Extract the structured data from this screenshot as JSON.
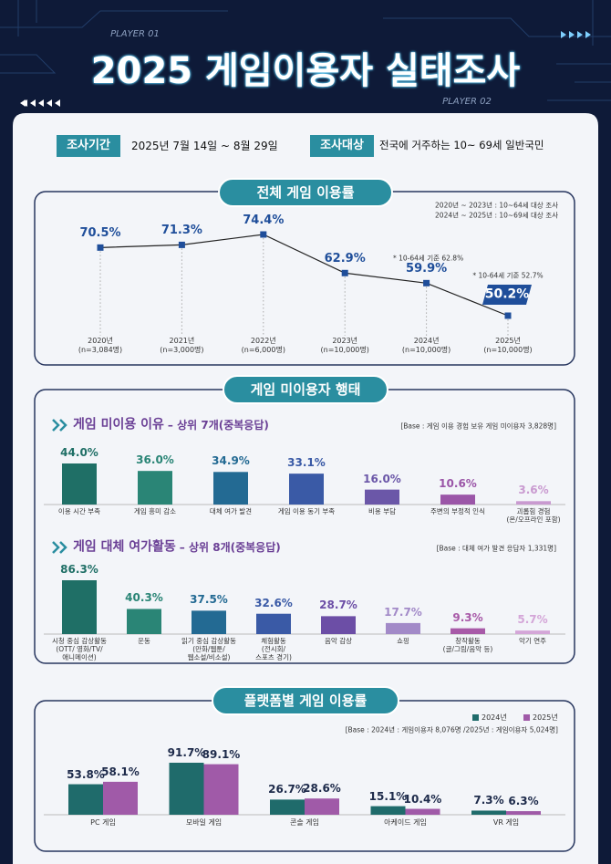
{
  "header": {
    "player1": "PLAYER 01",
    "title": "2025 게임이용자 실태조사",
    "player2": "PLAYER 02"
  },
  "survey": {
    "period_label": "조사기간",
    "period": "2025년 7월 14일 ~ 8월 29일",
    "target_label": "조사대상",
    "target": "전국에 거주하는 10~ 69세 일반국민"
  },
  "section_title": "게임 미이용자 행태",
  "chart_data": [
    {
      "type": "line",
      "title": "전체 게임 이용률",
      "notes": [
        "2020년 ~ 2023년 : 10~64세 대상 조사",
        "2024년 ~ 2025년 : 10~69세 대상 조사"
      ],
      "categories": [
        "2020년",
        "2021년",
        "2022년",
        "2023년",
        "2024년",
        "2025년"
      ],
      "sample_sizes": [
        "(n=3,084명)",
        "(n=3,000명)",
        "(n=6,000명)",
        "(n=10,000명)",
        "(n=10,000명)",
        "(n=10,000명)"
      ],
      "values": [
        70.5,
        71.3,
        74.4,
        62.9,
        59.9,
        50.2
      ],
      "value_labels": [
        "70.5%",
        "71.3%",
        "74.4%",
        "62.9%",
        "59.9%",
        "50.2%"
      ],
      "annotations": [
        "* 10-64세 기준 62.8%",
        "* 10-64세 기준 52.7%"
      ],
      "color": "#1f4e9a"
    },
    {
      "type": "bar",
      "title": "게임 미이용 이유",
      "subtitle": "– 상위 7개(중복응답)",
      "base": "[Base : 게임 이용 경험 보유 게임 미이용자 3,828명]",
      "categories": [
        "이용 시간 부족",
        "게임 흥미 감소",
        "대체 여가 발견",
        "게임 이용 동기 부족",
        "비용 부담",
        "주변의 부정적 인식",
        "괴롭힘 경험\n(온/오프라인 포함)"
      ],
      "values": [
        44.0,
        36.0,
        34.9,
        33.1,
        16.0,
        10.6,
        3.6
      ],
      "value_labels": [
        "44.0%",
        "36.0%",
        "34.9%",
        "33.1%",
        "16.0%",
        "10.6%",
        "3.6%"
      ],
      "colors": [
        "#1f6f66",
        "#2a8576",
        "#236a93",
        "#3a5aa6",
        "#6b57a8",
        "#9b56a8",
        "#c99ad0"
      ]
    },
    {
      "type": "bar",
      "title": "게임 대체 여가활동",
      "subtitle": "– 상위 8개(중복응답)",
      "base": "[Base : 대체 여가 발견 응답자 1,331명]",
      "categories": [
        "시청 중심 감상활동\n(OTT/ 영화/TV/\n애니메이션)",
        "운동",
        "읽기 중심 감상활동\n(만화/웹툰/\n웹소설/비소설)",
        "체험활동\n(전시회/\n스포츠 경기)",
        "음악 감상",
        "쇼핑",
        "창작활동\n(글/그림/음악 등)",
        "악기 연주"
      ],
      "values": [
        86.3,
        40.3,
        37.5,
        32.6,
        28.7,
        17.7,
        9.3,
        5.7
      ],
      "value_labels": [
        "86.3%",
        "40.3%",
        "37.5%",
        "32.6%",
        "28.7%",
        "17.7%",
        "9.3%",
        "5.7%"
      ],
      "colors": [
        "#1f6f66",
        "#2a8576",
        "#236a93",
        "#3a5aa6",
        "#6c4ea6",
        "#a28ac8",
        "#a85aa8",
        "#d4a6d8"
      ]
    },
    {
      "type": "grouped-bar",
      "title": "플랫폼별 게임 이용률",
      "base": "[Base : 2024년 : 게임이용자 8,076명 /2025년 : 게임이용자 5,024명]",
      "categories": [
        "PC 게임",
        "모바일 게임",
        "콘솔 게임",
        "아케이드 게임",
        "VR 게임"
      ],
      "series": [
        {
          "name": "2024년",
          "color": "#1f6b6b",
          "values": [
            53.8,
            91.7,
            26.7,
            15.1,
            7.3
          ],
          "value_labels": [
            "53.8%",
            "91.7%",
            "26.7%",
            "15.1%",
            "7.3%"
          ]
        },
        {
          "name": "2025년",
          "color": "#a05aa8",
          "values": [
            58.1,
            89.1,
            28.6,
            10.4,
            6.3
          ],
          "value_labels": [
            "58.1%",
            "89.1%",
            "28.6%",
            "10.4%",
            "6.3%"
          ]
        }
      ]
    }
  ]
}
